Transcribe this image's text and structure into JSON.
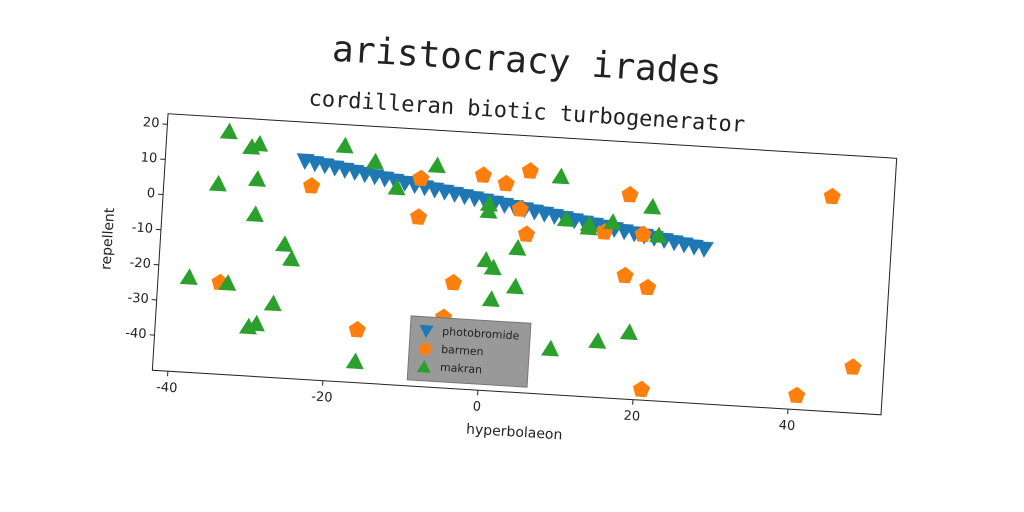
{
  "chart_data": {
    "type": "scatter",
    "title": "aristocracy irades",
    "subtitle": "cordilleran biotic turbogenerator",
    "xlabel": "hyperbolaeon",
    "ylabel": "repellent",
    "xlim": [
      -42,
      52
    ],
    "ylim": [
      -50,
      23
    ],
    "xticks": [
      -40,
      -20,
      0,
      20,
      40
    ],
    "yticks": [
      -40,
      -30,
      -20,
      -10,
      0,
      10,
      20
    ],
    "legend": "lower center",
    "series": [
      {
        "name": "photobromide",
        "color": "#1f77b4",
        "marker": "v",
        "x": [
          -24,
          -22.7,
          -21.4,
          -20.1,
          -18.8,
          -17.5,
          -16.2,
          -14.9,
          -13.6,
          -12.3,
          -11,
          -9.7,
          -8.4,
          -7.1,
          -5.8,
          -4.5,
          -3.2,
          -1.9,
          -0.6,
          0.7,
          2,
          3.3,
          4.6,
          5.9,
          7.2,
          8.5,
          9.8,
          11.1,
          12.4,
          13.7,
          15,
          16.3,
          17.6,
          18.9,
          20.2,
          21.5,
          22.8,
          24.1,
          25.4,
          26.7,
          28
        ],
        "values": [
          12,
          11.55,
          11.1,
          10.65,
          10.2,
          9.75,
          9.3,
          8.85,
          8.4,
          7.95,
          7.5,
          7.05,
          6.6,
          6.15,
          5.7,
          5.25,
          4.8,
          4.35,
          3.9,
          3.45,
          3.0,
          2.55,
          2.1,
          1.65,
          1.2,
          0.75,
          0.3,
          -0.15,
          -0.6,
          -1.05,
          -1.5,
          -1.95,
          -2.4,
          -2.85,
          -3.3,
          -3.75,
          -4.2,
          -4.65,
          -5.1,
          -5.55,
          -6.0
        ]
      },
      {
        "name": "barmen",
        "color": "#ff7f0e",
        "marker": "p",
        "x": [
          -23,
          -34,
          -16,
          -9,
          -9,
          -7,
          -5,
          -4,
          -1,
          2,
          4,
          5,
          5,
          15,
          18,
          18,
          20,
          21,
          21,
          41,
          44,
          48
        ],
        "values": [
          5,
          -24,
          -35,
          9,
          -2,
          -36,
          -30,
          -20,
          11,
          9,
          2,
          13,
          -5,
          -3,
          8,
          -15,
          -3,
          -18,
          -47,
          -46,
          11,
          -37
        ]
      },
      {
        "name": "makran",
        "color": "#2ca02c",
        "marker": "^",
        "x": [
          -38,
          -35,
          -34,
          -33,
          -31,
          -30,
          -30,
          -30,
          -30,
          -29,
          -27,
          -26,
          -25,
          -19,
          -16,
          -15,
          -12,
          -7,
          0,
          0,
          0,
          1,
          1,
          4,
          4,
          9,
          9,
          10,
          13,
          13,
          15,
          16,
          19,
          21,
          22
        ],
        "values": [
          -23,
          4,
          19,
          -24,
          15,
          16,
          6,
          -4,
          -36,
          -35,
          -29,
          -12,
          -16,
          17,
          -44,
          13,
          6,
          13,
          1,
          3,
          -13,
          -15,
          -24,
          -20,
          -9,
          12,
          -37,
          0,
          -1,
          -2,
          -34,
          0,
          -31,
          5,
          -3
        ]
      }
    ]
  }
}
